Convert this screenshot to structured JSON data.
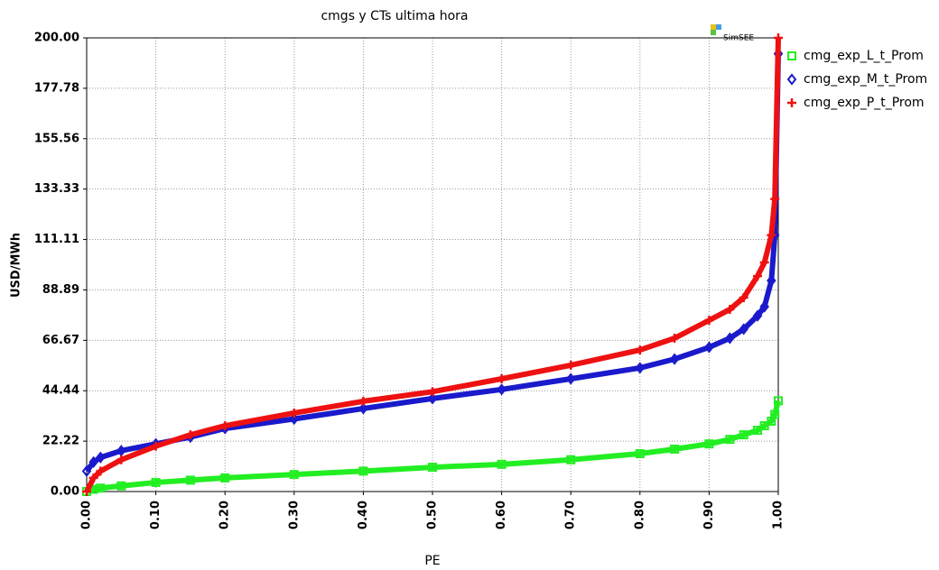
{
  "chart_data": {
    "type": "line",
    "title": "cmgs y CTs ultima hora",
    "x_label": "PE",
    "y_label": "USD/MWh",
    "watermark": "SimSEE",
    "x": [
      0,
      0.01,
      0.02,
      0.05,
      0.1,
      0.15,
      0.2,
      0.3,
      0.4,
      0.5,
      0.6,
      0.7,
      0.8,
      0.85,
      0.9,
      0.93,
      0.95,
      0.97,
      0.98,
      0.99,
      0.995,
      1.0
    ],
    "series": [
      {
        "name": "cmg_exp_L_t_Prom",
        "color": "#22ee22",
        "marker": "square",
        "values": [
          0,
          1,
          1.5,
          2.5,
          4,
          5,
          6,
          7.5,
          9,
          10.7,
          12,
          14,
          16.7,
          18.7,
          21,
          23,
          25,
          27,
          29,
          31,
          34,
          40
        ]
      },
      {
        "name": "cmg_exp_M_t_Prom",
        "color": "#1a1acc",
        "marker": "diamond",
        "values": [
          9,
          13,
          15,
          18,
          21,
          24,
          27.8,
          32,
          36.6,
          41,
          45,
          49.7,
          54.5,
          58.4,
          63.6,
          67.6,
          71.6,
          77.5,
          81.5,
          93,
          113,
          193
        ]
      },
      {
        "name": "cmg_exp_P_t_Prom",
        "color": "#ee1111",
        "marker": "plus",
        "values": [
          0,
          6,
          9,
          14,
          20,
          25,
          29,
          34.6,
          39.8,
          44,
          49.7,
          55.7,
          62.4,
          67.6,
          75.5,
          80.3,
          85.5,
          95,
          101,
          113,
          129,
          200
        ]
      }
    ],
    "xlim": [
      0,
      1
    ],
    "xticks": [
      {
        "value": 0,
        "label": "0.00"
      },
      {
        "value": 0.1,
        "label": "0.10"
      },
      {
        "value": 0.2,
        "label": "0.20"
      },
      {
        "value": 0.3,
        "label": "0.30"
      },
      {
        "value": 0.4,
        "label": "0.40"
      },
      {
        "value": 0.5,
        "label": "0.50"
      },
      {
        "value": 0.6,
        "label": "0.60"
      },
      {
        "value": 0.7,
        "label": "0.70"
      },
      {
        "value": 0.8,
        "label": "0.80"
      },
      {
        "value": 0.9,
        "label": "0.90"
      },
      {
        "value": 1,
        "label": "1.00"
      }
    ],
    "ylim": [
      0,
      200
    ],
    "yticks": [
      {
        "value": 0,
        "label": "0.00"
      },
      22.22,
      44.44,
      66.67,
      88.89,
      111.11,
      133.33,
      155.56,
      177.78,
      {
        "value": 200,
        "label": "200.00"
      }
    ],
    "grid": true,
    "legend": "right"
  }
}
